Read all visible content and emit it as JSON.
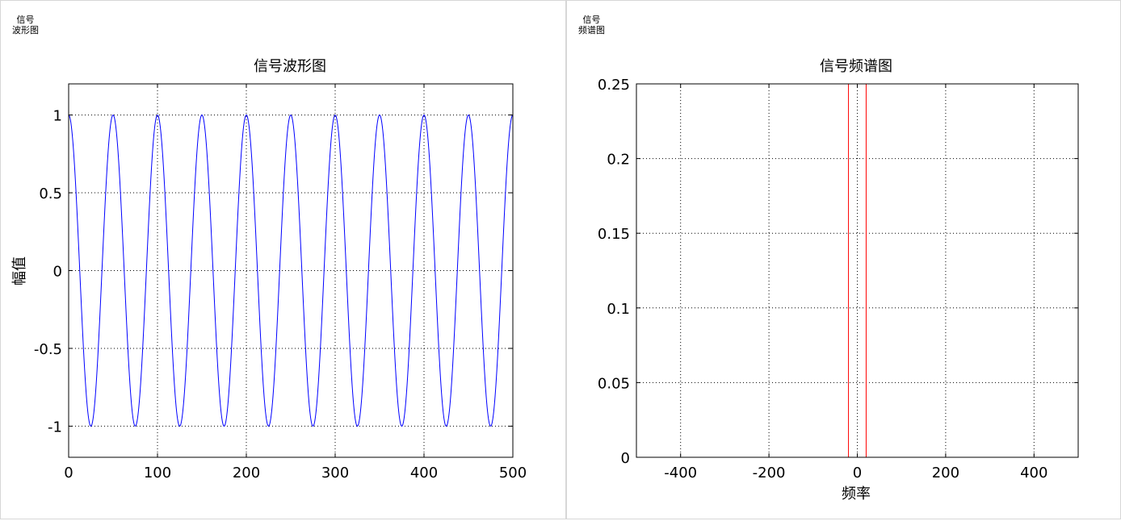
{
  "panels": [
    {
      "caption_line1": "信号",
      "caption_line2": "波形图"
    },
    {
      "caption_line1": "信号",
      "caption_line2": "频谱图"
    }
  ],
  "chart_data": [
    {
      "type": "line",
      "title": "信号波形图",
      "xlabel": "",
      "ylabel": "幅值",
      "xlim": [
        0,
        500
      ],
      "ylim": [
        -1.2,
        1.2
      ],
      "xticks": [
        0,
        100,
        200,
        300,
        400,
        500
      ],
      "yticks": [
        1,
        0.5,
        0,
        -0.5,
        -1
      ],
      "xtick_labels": [
        "0",
        "100",
        "200",
        "300",
        "400",
        "500"
      ],
      "ytick_labels": [
        "1",
        "0.5",
        "0",
        "-0.5",
        "-1"
      ],
      "grid": true,
      "series": [
        {
          "color": "#0000ff",
          "function": "cos",
          "amplitude": 1,
          "period": 50,
          "x_start": 0,
          "x_end": 500
        }
      ]
    },
    {
      "type": "line",
      "title": "信号频谱图",
      "xlabel": "频率",
      "ylabel": "",
      "xlim": [
        -500,
        500
      ],
      "ylim": [
        0,
        0.25
      ],
      "xticks": [
        -400,
        -200,
        0,
        200,
        400
      ],
      "yticks": [
        0.25,
        0.2,
        0.15,
        0.1,
        0.05,
        0
      ],
      "xtick_labels": [
        "-400",
        "-200",
        "0",
        "200",
        "400"
      ],
      "ytick_labels": [
        "0.25",
        "0.2",
        "0.15",
        "0.1",
        "0.05",
        "0"
      ],
      "grid": true,
      "series": [
        {
          "color": "#ff0000",
          "x": [
            -500,
            -20,
            -20,
            -20,
            20,
            20,
            20,
            500
          ],
          "y": [
            0,
            0,
            0.25,
            0,
            0,
            0.25,
            0,
            0
          ]
        }
      ]
    }
  ]
}
